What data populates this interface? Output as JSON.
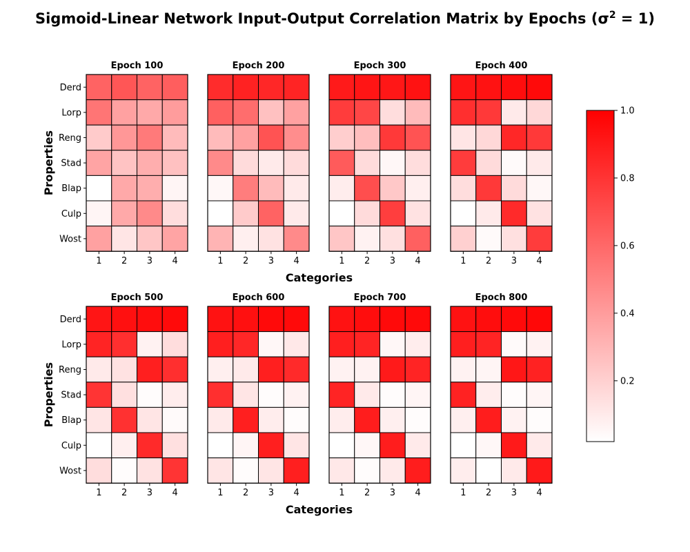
{
  "title": {
    "prefix": "Sigmoid-Linear Network Input-Output Correlation Matrix by Epochs (σ",
    "sup": "2",
    "suffix": " = 1)"
  },
  "colors": {
    "low": "#ffffff",
    "high": "#ff0000",
    "grid": "#000000"
  },
  "chart_data": {
    "type": "heatmap",
    "xlabel": "Categories",
    "ylabel": "Properties",
    "rows": [
      "Derd",
      "Lorp",
      "Reng",
      "Stad",
      "Blap",
      "Culp",
      "Wost"
    ],
    "columns": [
      "1",
      "2",
      "3",
      "4"
    ],
    "colorbar": {
      "range": [
        0.02,
        1.0
      ],
      "ticks": [
        0.2,
        0.4,
        0.6,
        0.8,
        1.0
      ],
      "tick_labels": [
        "0.2",
        "0.4",
        "0.6",
        "0.8",
        "1.0"
      ]
    },
    "panels": [
      {
        "title": "Epoch 100",
        "values": [
          [
            0.62,
            0.67,
            0.62,
            0.64
          ],
          [
            0.55,
            0.38,
            0.35,
            0.4
          ],
          [
            0.22,
            0.42,
            0.53,
            0.28
          ],
          [
            0.37,
            0.25,
            0.33,
            0.26
          ],
          [
            0.02,
            0.35,
            0.33,
            0.06
          ],
          [
            0.06,
            0.35,
            0.47,
            0.15
          ],
          [
            0.38,
            0.12,
            0.24,
            0.37
          ]
        ]
      },
      {
        "title": "Epoch 200",
        "values": [
          [
            0.83,
            0.87,
            0.85,
            0.86
          ],
          [
            0.63,
            0.58,
            0.26,
            0.38
          ],
          [
            0.28,
            0.38,
            0.68,
            0.46
          ],
          [
            0.47,
            0.16,
            0.1,
            0.16
          ],
          [
            0.05,
            0.52,
            0.28,
            0.1
          ],
          [
            0.02,
            0.22,
            0.62,
            0.1
          ],
          [
            0.31,
            0.08,
            0.13,
            0.47
          ]
        ]
      },
      {
        "title": "Epoch 300",
        "values": [
          [
            0.9,
            0.92,
            0.91,
            0.93
          ],
          [
            0.77,
            0.73,
            0.15,
            0.28
          ],
          [
            0.21,
            0.27,
            0.78,
            0.68
          ],
          [
            0.65,
            0.16,
            0.05,
            0.15
          ],
          [
            0.09,
            0.7,
            0.23,
            0.08
          ],
          [
            0.02,
            0.16,
            0.76,
            0.13
          ],
          [
            0.24,
            0.07,
            0.14,
            0.63
          ]
        ]
      },
      {
        "title": "Epoch 400",
        "values": [
          [
            0.92,
            0.93,
            0.95,
            0.96
          ],
          [
            0.82,
            0.78,
            0.1,
            0.17
          ],
          [
            0.12,
            0.17,
            0.85,
            0.78
          ],
          [
            0.77,
            0.16,
            0.04,
            0.1
          ],
          [
            0.15,
            0.78,
            0.16,
            0.05
          ],
          [
            0.02,
            0.1,
            0.84,
            0.13
          ],
          [
            0.2,
            0.04,
            0.14,
            0.77
          ]
        ]
      },
      {
        "title": "Epoch 500",
        "values": [
          [
            0.92,
            0.94,
            0.95,
            0.96
          ],
          [
            0.86,
            0.82,
            0.07,
            0.15
          ],
          [
            0.1,
            0.13,
            0.88,
            0.82
          ],
          [
            0.8,
            0.14,
            0.03,
            0.09
          ],
          [
            0.12,
            0.81,
            0.12,
            0.04
          ],
          [
            0.02,
            0.08,
            0.84,
            0.14
          ],
          [
            0.15,
            0.03,
            0.13,
            0.8
          ]
        ]
      },
      {
        "title": "Epoch 600",
        "values": [
          [
            0.93,
            0.94,
            0.96,
            0.96
          ],
          [
            0.88,
            0.85,
            0.05,
            0.11
          ],
          [
            0.08,
            0.1,
            0.88,
            0.84
          ],
          [
            0.82,
            0.12,
            0.03,
            0.07
          ],
          [
            0.1,
            0.88,
            0.09,
            0.03
          ],
          [
            0.02,
            0.06,
            0.88,
            0.12
          ],
          [
            0.12,
            0.03,
            0.12,
            0.88
          ]
        ]
      },
      {
        "title": "Epoch 700",
        "values": [
          [
            0.93,
            0.95,
            0.96,
            0.96
          ],
          [
            0.88,
            0.86,
            0.05,
            0.09
          ],
          [
            0.07,
            0.07,
            0.9,
            0.86
          ],
          [
            0.86,
            0.1,
            0.03,
            0.06
          ],
          [
            0.09,
            0.89,
            0.08,
            0.03
          ],
          [
            0.02,
            0.05,
            0.89,
            0.1
          ],
          [
            0.11,
            0.03,
            0.1,
            0.89
          ]
        ]
      },
      {
        "title": "Epoch 800",
        "values": [
          [
            0.93,
            0.95,
            0.96,
            0.97
          ],
          [
            0.88,
            0.86,
            0.04,
            0.07
          ],
          [
            0.07,
            0.06,
            0.91,
            0.87
          ],
          [
            0.87,
            0.09,
            0.03,
            0.06
          ],
          [
            0.08,
            0.89,
            0.07,
            0.03
          ],
          [
            0.02,
            0.05,
            0.9,
            0.1
          ],
          [
            0.09,
            0.02,
            0.1,
            0.9
          ]
        ]
      }
    ]
  }
}
